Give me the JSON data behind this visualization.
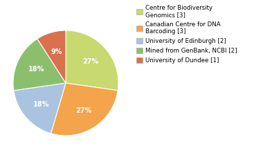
{
  "labels": [
    "Centre for Biodiversity\nGenomics [3]",
    "Canadian Centre for DNA\nBarcoding [3]",
    "University of Edinburgh [2]",
    "Mined from GenBank, NCBI [2]",
    "University of Dundee [1]"
  ],
  "values": [
    27,
    27,
    18,
    18,
    9
  ],
  "colors": [
    "#c8d96f",
    "#f4a44a",
    "#aac4e0",
    "#8bbf6e",
    "#d9704e"
  ],
  "pct_labels": [
    "27%",
    "27%",
    "18%",
    "18%",
    "9%"
  ],
  "startangle": 90,
  "background_color": "#ffffff"
}
